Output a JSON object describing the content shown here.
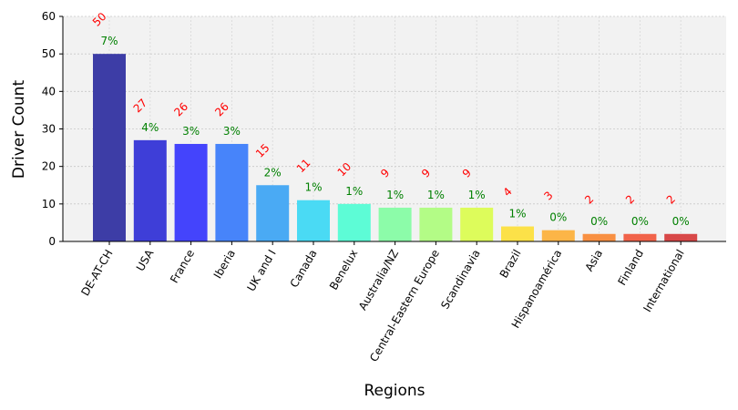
{
  "chart_data": {
    "type": "bar",
    "title": "",
    "xlabel": "Regions",
    "ylabel": "Driver Count",
    "ylim": [
      0,
      60
    ],
    "yticks": [
      0,
      10,
      20,
      30,
      40,
      50,
      60
    ],
    "grid": true,
    "categories": [
      "DE-AT-CH",
      "USA",
      "France",
      "Iberia",
      "UK and I",
      "Canada",
      "Benelux",
      "Australia/NZ",
      "Central-Eastern Europe",
      "Scandinavia",
      "Brazil",
      "Hispanoamérica",
      "Asia",
      "Finland",
      "International"
    ],
    "values": [
      50,
      27,
      26,
      26,
      15,
      11,
      10,
      9,
      9,
      9,
      4,
      3,
      2,
      2,
      2
    ],
    "percent_labels": [
      "7%",
      "4%",
      "3%",
      "3%",
      "2%",
      "1%",
      "1%",
      "1%",
      "1%",
      "1%",
      "1%",
      "0%",
      "0%",
      "0%",
      "0%"
    ],
    "bar_colors": [
      "#3d3da6",
      "#3e3ed8",
      "#4444fc",
      "#4784fa",
      "#4aaaf4",
      "#4adaf4",
      "#5dfcd6",
      "#8cfca9",
      "#b3fc86",
      "#ddfc5b",
      "#fce148",
      "#fcb547",
      "#f89042",
      "#f1634a",
      "#d84848"
    ],
    "value_label_color": "#ff0000",
    "percent_label_color": "#008000",
    "plot_background": "#f2f2f2"
  }
}
